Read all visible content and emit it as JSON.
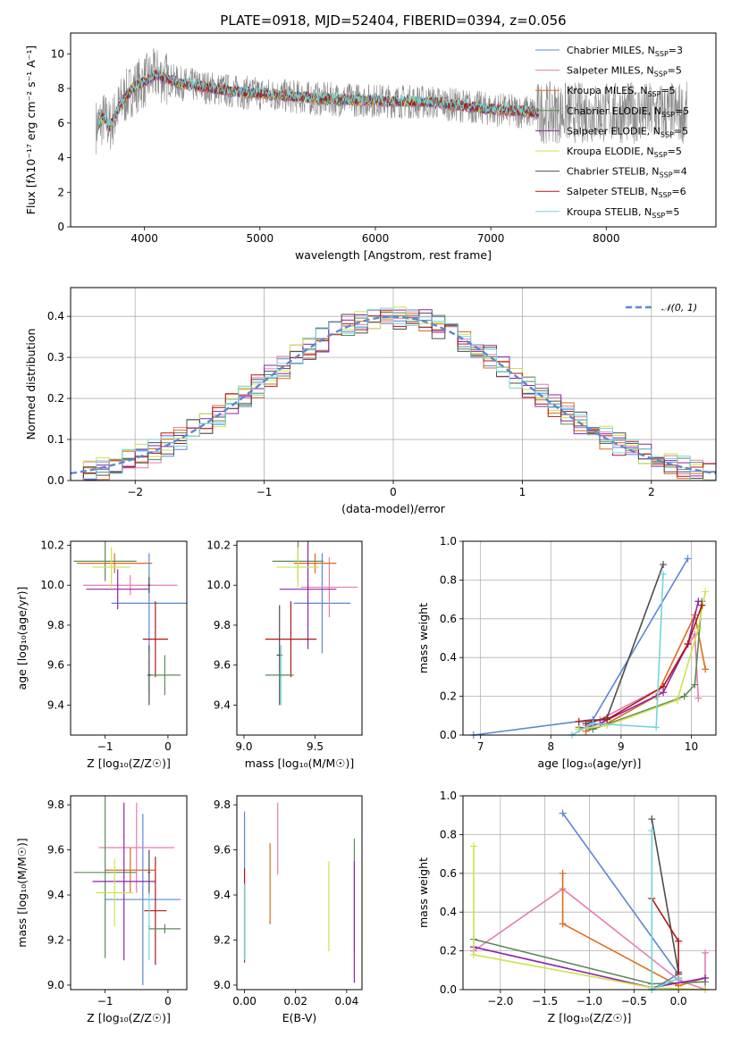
{
  "figure": {
    "title": "PLATE=0918, MJD=52404, FIBERID=0394, z=0.056"
  },
  "colors": {
    "Chabrier MILES": "#5b87d5",
    "Salpeter MILES": "#e47cb4",
    "Kroupa MILES": "#dd6c19",
    "Chabrier ELODIE": "#5b8a5b",
    "Salpeter ELODIE": "#8e24aa",
    "Kroupa ELODIE": "#cfe24a",
    "Chabrier STELIB": "#4d4d4d",
    "Salpeter STELIB": "#b01818",
    "Kroupa STELIB": "#72d5dd",
    "data": "#888888",
    "normal": "#5b87d5"
  },
  "chart_data": [
    {
      "id": "spectrum",
      "type": "line",
      "title": "PLATE=0918, MJD=52404, FIBERID=0394, z=0.056",
      "xlabel": "wavelength [Angstrom, rest frame]",
      "ylabel": "Flux [fλ10⁻¹⁷ erg cm⁻² s⁻¹ A⁻¹]",
      "xlim": [
        3360,
        8950
      ],
      "ylim": [
        0,
        11.2
      ],
      "xticks": [
        "4000",
        "5000",
        "6000",
        "7000",
        "8000"
      ],
      "yticks": [
        "0",
        "2",
        "4",
        "6",
        "8",
        "10"
      ],
      "legend_position": "upper-right",
      "legend": [
        {
          "name": "Chabrier MILES",
          "nssp": "3"
        },
        {
          "name": "Salpeter MILES",
          "nssp": "5"
        },
        {
          "name": "Kroupa MILES",
          "nssp": "5"
        },
        {
          "name": "Chabrier ELODIE",
          "nssp": "5"
        },
        {
          "name": "Salpeter ELODIE",
          "nssp": "5"
        },
        {
          "name": "Kroupa ELODIE",
          "nssp": "5"
        },
        {
          "name": "Chabrier STELIB",
          "nssp": "4"
        },
        {
          "name": "Salpeter STELIB",
          "nssp": "6"
        },
        {
          "name": "Kroupa STELIB",
          "nssp": "5"
        }
      ],
      "continuum": {
        "x": [
          3580,
          3650,
          3700,
          3800,
          3900,
          4000,
          4100,
          4300,
          4500,
          4800,
          5000,
          5500,
          6000,
          6500,
          7000,
          7400
        ],
        "y": [
          5.8,
          6.3,
          5.8,
          7.2,
          8.0,
          8.4,
          8.8,
          8.3,
          8.1,
          7.8,
          7.7,
          7.4,
          7.3,
          7.2,
          6.8,
          6.6
        ]
      },
      "grid": false
    },
    {
      "id": "residuals",
      "type": "step",
      "xlabel": "(data-model)/error",
      "ylabel": "Normed distribution",
      "xlim": [
        -2.5,
        2.5
      ],
      "ylim": [
        0,
        0.47
      ],
      "xticks": [
        "−2",
        "−1",
        "0",
        "1",
        "2"
      ],
      "yticks": [
        "0.0",
        "0.1",
        "0.2",
        "0.3",
        "0.4"
      ],
      "legend": [
        {
          "name": "𝒩(0, 1)"
        }
      ],
      "legend_position": "upper-right",
      "grid": true,
      "bin_width": 0.1
    },
    {
      "id": "age-vs-Z",
      "type": "errorbar",
      "xlabel": "Z [log₁₀(Z/Z☉)]",
      "ylabel": "age  [log₁₀(age/yr)]",
      "xlim": [
        -1.55,
        0.3
      ],
      "ylim": [
        9.25,
        10.22
      ],
      "xticks": [
        "−1",
        "0"
      ],
      "yticks": [
        "9.4",
        "9.6",
        "9.8",
        "10.0",
        "10.2"
      ],
      "points": [
        {
          "series": "Chabrier MILES",
          "x": -0.3,
          "xerr": 0.6,
          "y": 9.91,
          "yerr": 0.25
        },
        {
          "series": "Salpeter MILES",
          "x": -0.6,
          "xerr": 0.75,
          "y": 10.0,
          "yerr": 0.05
        },
        {
          "series": "Kroupa MILES",
          "x": -0.85,
          "xerr": 0.6,
          "y": 10.11,
          "yerr": 0.05
        },
        {
          "series": "Chabrier ELODIE",
          "x": -1.0,
          "xerr": 0.5,
          "y": 10.12,
          "yerr": 0.1
        },
        {
          "series": "Salpeter ELODIE",
          "x": -0.8,
          "xerr": 0.5,
          "y": 9.98,
          "yerr": 0.1
        },
        {
          "series": "Kroupa ELODIE",
          "x": -0.9,
          "xerr": 0.3,
          "y": 10.09,
          "yerr": 0.1
        },
        {
          "series": "Chabrier STELIB",
          "x": -0.3,
          "xerr": 0.02,
          "y": 10.0,
          "yerr": 0.04
        },
        {
          "series": "Salpeter STELIB",
          "x": -0.2,
          "xerr": 0.2,
          "y": 9.73,
          "yerr": 0.19
        },
        {
          "series": "Kroupa STELIB",
          "x": -0.3,
          "xerr": 0.02,
          "y": 9.55,
          "yerr": 0.08
        },
        {
          "series": "Chabrier ELODIE",
          "x": -0.05,
          "xerr": 0.25,
          "y": 9.55,
          "yerr": 0.1
        },
        {
          "series": "Chabrier STELIB",
          "x": -0.3,
          "xerr": 0.03,
          "y": 9.55,
          "yerr": 0.15
        }
      ]
    },
    {
      "id": "age-vs-mass",
      "type": "errorbar",
      "xlabel": "mass [log₁₀(M/M☉)]",
      "xlim": [
        8.95,
        9.83
      ],
      "ylim": [
        9.25,
        10.22
      ],
      "xticks": [
        "9.0",
        "9.5"
      ],
      "yticks": [
        "9.4",
        "9.6",
        "9.8",
        "10.0",
        "10.2"
      ],
      "points": [
        {
          "series": "Chabrier MILES",
          "x": 9.55,
          "xerr": 0.2,
          "y": 9.91,
          "yerr": 0.25
        },
        {
          "series": "Salpeter MILES",
          "x": 9.6,
          "xerr": 0.2,
          "y": 9.99,
          "yerr": 0.15
        },
        {
          "series": "Kroupa MILES",
          "x": 9.5,
          "xerr": 0.15,
          "y": 10.11,
          "yerr": 0.05
        },
        {
          "series": "Chabrier ELODIE",
          "x": 9.38,
          "xerr": 0.18,
          "y": 10.12,
          "yerr": 0.1
        },
        {
          "series": "Salpeter ELODIE",
          "x": 9.45,
          "xerr": 0.2,
          "y": 9.98,
          "yerr": 0.3
        },
        {
          "series": "Kroupa ELODIE",
          "x": 9.38,
          "xerr": 0.15,
          "y": 10.09,
          "yerr": 0.1
        },
        {
          "series": "Chabrier STELIB",
          "x": 9.25,
          "xerr": 0.02,
          "y": 9.65,
          "yerr": 0.25
        },
        {
          "series": "Salpeter STELIB",
          "x": 9.33,
          "xerr": 0.18,
          "y": 9.73,
          "yerr": 0.19
        },
        {
          "series": "Kroupa STELIB",
          "x": 9.26,
          "xerr": 0.02,
          "y": 9.55,
          "yerr": 0.15
        },
        {
          "series": "Chabrier ELODIE",
          "x": 9.25,
          "xerr": 0.1,
          "y": 9.55,
          "yerr": 0.02
        }
      ]
    },
    {
      "id": "weight-vs-age",
      "type": "line",
      "xlabel": "age  [log₁₀(age/yr)]",
      "ylabel": "mass weight",
      "xlim": [
        6.75,
        10.35
      ],
      "ylim": [
        0,
        1.0
      ],
      "xticks": [
        "7",
        "8",
        "9",
        "10"
      ],
      "yticks": [
        "0.0",
        "0.2",
        "0.4",
        "0.6",
        "0.8",
        "1.0"
      ],
      "grid": true,
      "series": [
        {
          "name": "Chabrier MILES",
          "x": [
            6.9,
            8.6,
            9.95
          ],
          "y": [
            0.0,
            0.08,
            0.91
          ]
        },
        {
          "name": "Salpeter MILES",
          "x": [
            8.5,
            8.7,
            9.6,
            10.05,
            10.1
          ],
          "y": [
            0.05,
            0.08,
            0.25,
            0.52,
            0.19
          ]
        },
        {
          "name": "Kroupa MILES",
          "x": [
            8.5,
            8.8,
            9.5,
            10.05,
            10.2
          ],
          "y": [
            0.02,
            0.06,
            0.2,
            0.62,
            0.34
          ]
        },
        {
          "name": "Chabrier ELODIE",
          "x": [
            8.4,
            8.6,
            9.9,
            10.05,
            10.15
          ],
          "y": [
            0.04,
            0.03,
            0.2,
            0.26,
            0.69
          ]
        },
        {
          "name": "Salpeter ELODIE",
          "x": [
            8.4,
            8.7,
            9.6,
            9.95,
            10.1
          ],
          "y": [
            0.03,
            0.06,
            0.22,
            0.47,
            0.69
          ]
        },
        {
          "name": "Kroupa ELODIE",
          "x": [
            8.4,
            8.8,
            9.8,
            10.1,
            10.2
          ],
          "y": [
            0.03,
            0.05,
            0.18,
            0.55,
            0.74
          ]
        },
        {
          "name": "Chabrier STELIB",
          "x": [
            8.5,
            8.8,
            9.6
          ],
          "y": [
            0.06,
            0.09,
            0.88
          ]
        },
        {
          "name": "Salpeter STELIB",
          "x": [
            8.4,
            8.8,
            9.6,
            9.95,
            10.15
          ],
          "y": [
            0.07,
            0.08,
            0.25,
            0.47,
            0.67
          ]
        },
        {
          "name": "Kroupa STELIB",
          "x": [
            8.3,
            8.6,
            9.5,
            9.6
          ],
          "y": [
            0.0,
            0.06,
            0.04,
            0.83
          ]
        }
      ]
    },
    {
      "id": "mass-vs-Z",
      "type": "errorbar",
      "xlabel": "Z [log₁₀(Z/Z☉)]",
      "ylabel": "mass [log₁₀(M/M☉)]",
      "xlim": [
        -1.55,
        0.3
      ],
      "ylim": [
        8.98,
        9.84
      ],
      "xticks": [
        "−1",
        "0"
      ],
      "yticks": [
        "9.0",
        "9.2",
        "9.4",
        "9.6",
        "9.8"
      ],
      "points": [
        {
          "series": "Chabrier MILES",
          "x": -0.4,
          "xerr": 0.6,
          "y": 9.38,
          "yerr": 0.38
        },
        {
          "series": "Salpeter MILES",
          "x": -0.5,
          "xerr": 0.6,
          "y": 9.61,
          "yerr": 0.2
        },
        {
          "series": "Kroupa MILES",
          "x": -0.6,
          "xerr": 0.4,
          "y": 9.51,
          "yerr": 0.1
        },
        {
          "series": "Chabrier ELODIE",
          "x": -1.0,
          "xerr": 0.5,
          "y": 9.5,
          "yerr": 0.38
        },
        {
          "series": "Salpeter ELODIE",
          "x": -0.7,
          "xerr": 0.5,
          "y": 9.46,
          "yerr": 0.35
        },
        {
          "series": "Kroupa ELODIE",
          "x": -0.85,
          "xerr": 0.3,
          "y": 9.41,
          "yerr": 0.15
        },
        {
          "series": "Chabrier STELIB",
          "x": -0.3,
          "xerr": 0.02,
          "y": 9.5,
          "yerr": 0.1
        },
        {
          "series": "Salpeter STELIB",
          "x": -0.2,
          "xerr": 0.18,
          "y": 9.33,
          "yerr": 0.24
        },
        {
          "series": "Kroupa STELIB",
          "x": -0.3,
          "xerr": 0.02,
          "y": 9.26,
          "yerr": 0.15
        },
        {
          "series": "Chabrier ELODIE",
          "x": -0.05,
          "xerr": 0.25,
          "y": 9.25,
          "yerr": 0.02
        }
      ]
    },
    {
      "id": "mass-vs-ebv",
      "type": "errorbar",
      "xlabel": "E(B-V)",
      "xlim": [
        -0.003,
        0.046
      ],
      "ylim": [
        8.98,
        9.84
      ],
      "xticks": [
        "0.00",
        "0.02",
        "0.04"
      ],
      "yticks": [
        "9.0",
        "9.2",
        "9.4",
        "9.6",
        "9.8"
      ],
      "points": [
        {
          "series": "Chabrier MILES",
          "x": 0.0,
          "y": 9.45,
          "yerr": 0.32
        },
        {
          "series": "Salpeter MILES",
          "x": 0.013,
          "y": 9.65,
          "yerr": 0.16
        },
        {
          "series": "Kroupa MILES",
          "x": 0.01,
          "y": 9.45,
          "yerr": 0.18
        },
        {
          "series": "Chabrier ELODIE",
          "x": 0.043,
          "y": 9.4,
          "yerr": 0.25
        },
        {
          "series": "Salpeter ELODIE",
          "x": 0.043,
          "y": 9.28,
          "yerr": 0.27
        },
        {
          "series": "Kroupa ELODIE",
          "x": 0.033,
          "y": 9.35,
          "yerr": 0.2
        },
        {
          "series": "Chabrier STELIB",
          "x": 0.0,
          "y": 9.28,
          "yerr": 0.17
        },
        {
          "series": "Salpeter STELIB",
          "x": 0.0,
          "y": 9.31,
          "yerr": 0.21
        },
        {
          "series": "Kroupa STELIB",
          "x": 0.0,
          "y": 9.28,
          "yerr": 0.17
        }
      ]
    },
    {
      "id": "weight-vs-Z",
      "type": "line",
      "xlabel": "Z [log₁₀(Z/Z☉)]",
      "ylabel": "mass weight",
      "xlim": [
        -2.42,
        0.42
      ],
      "ylim": [
        0,
        1.0
      ],
      "xticks": [
        "−2.0",
        "−1.5",
        "−1.0",
        "−0.5",
        "0.0"
      ],
      "yticks": [
        "0.0",
        "0.2",
        "0.4",
        "0.6",
        "0.8",
        "1.0"
      ],
      "grid": true,
      "series": [
        {
          "name": "Chabrier MILES",
          "x": [
            -1.3,
            0.0,
            -0.3
          ],
          "y": [
            0.91,
            0.08,
            0.0
          ]
        },
        {
          "name": "Salpeter MILES",
          "x": [
            -2.3,
            -1.3,
            0.0,
            0.3,
            0.3
          ],
          "y": [
            0.2,
            0.52,
            0.05,
            0.0,
            0.19
          ]
        },
        {
          "name": "Kroupa MILES",
          "x": [
            -1.3,
            -1.3,
            0.0,
            0.3
          ],
          "y": [
            0.6,
            0.34,
            0.02,
            0.06
          ]
        },
        {
          "name": "Chabrier ELODIE",
          "x": [
            -2.3,
            -0.3,
            0.3
          ],
          "y": [
            0.26,
            0.03,
            0.04
          ]
        },
        {
          "name": "Salpeter ELODIE",
          "x": [
            -2.3,
            -0.3,
            0.3
          ],
          "y": [
            0.22,
            0.01,
            0.06
          ]
        },
        {
          "name": "Kroupa ELODIE",
          "x": [
            -2.3,
            -2.3,
            -0.3,
            0.3
          ],
          "y": [
            0.74,
            0.18,
            0.01,
            0.0
          ]
        },
        {
          "name": "Chabrier STELIB",
          "x": [
            -0.3,
            0.0,
            0.0
          ],
          "y": [
            0.88,
            0.09,
            0.06
          ]
        },
        {
          "name": "Salpeter STELIB",
          "x": [
            -0.3,
            0.0,
            0.0
          ],
          "y": [
            0.47,
            0.25,
            0.08
          ]
        },
        {
          "name": "Kroupa STELIB",
          "x": [
            -0.3,
            -0.3,
            0.0
          ],
          "y": [
            0.82,
            0.0,
            0.06
          ]
        }
      ]
    }
  ]
}
